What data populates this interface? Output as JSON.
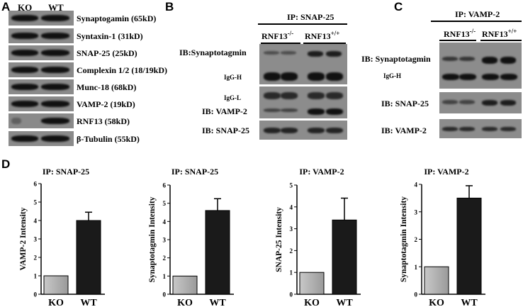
{
  "panels": {
    "A": "A",
    "B": "B",
    "C": "C",
    "D": "D"
  },
  "panelA": {
    "lanes": [
      "KO",
      "WT"
    ],
    "rows": [
      "Synaptogamin (65kD)",
      "Syntaxin-1 (31kD)",
      "SNAP-25 (25kD)",
      "Complexin 1/2 (18/19kD)",
      "Munc-18 (68kD)",
      "VAMP-2 (19kD)",
      "RNF13 (58kD)",
      "β-Tubulin (55kD)"
    ]
  },
  "panelB": {
    "ip": "IP: SNAP-25",
    "ko": "RNF13",
    "ko_sup": "-/-",
    "wt": "RNF13",
    "wt_sup": "+/+",
    "labels": {
      "ib_syt": "IB:Synaptotagmin",
      "igg_h": "IgG-H",
      "igg_l": "IgG-L",
      "ib_vamp": "IB: VAMP-2",
      "ib_snap": "IB: SNAP-25"
    }
  },
  "panelC": {
    "ip": "IP: VAMP-2",
    "ko": "RNF13",
    "ko_sup": "-/-",
    "wt": "RNF13",
    "wt_sup": "+/+",
    "labels": {
      "ib_syt": "IB: Synaptotagmin",
      "igg_h": "IgG-H",
      "ib_snap": "IB: SNAP-25",
      "ib_vamp": "IB: VAMP-2"
    }
  },
  "chart_data": [
    {
      "type": "bar",
      "title": "IP: SNAP-25",
      "ylabel": "VAMP-2 Intensity",
      "categories": [
        "KO",
        "WT"
      ],
      "values": [
        1.0,
        4.0
      ],
      "errors": [
        0,
        0.45
      ],
      "ylim": [
        0,
        6
      ],
      "yticks": [
        0,
        1,
        2,
        3,
        4,
        5,
        6
      ]
    },
    {
      "type": "bar",
      "title": "IP: SNAP-25",
      "ylabel": "Synaptotagmin Intensity",
      "categories": [
        "KO",
        "WT"
      ],
      "values": [
        1.0,
        4.6
      ],
      "errors": [
        0,
        0.65
      ],
      "ylim": [
        0,
        6
      ],
      "yticks": [
        0,
        1,
        2,
        3,
        4,
        5,
        6
      ]
    },
    {
      "type": "bar",
      "title": "IP: VAMP-2",
      "ylabel": "SNAP-25 Intensity",
      "categories": [
        "KO",
        "WT"
      ],
      "values": [
        1.0,
        3.4
      ],
      "errors": [
        0,
        1.0
      ],
      "ylim": [
        0,
        5
      ],
      "yticks": [
        0,
        1,
        2,
        3,
        4,
        5
      ]
    },
    {
      "type": "bar",
      "title": "IP: VAMP-2",
      "ylabel": "Synaptotagmin Intensity",
      "categories": [
        "KO",
        "WT"
      ],
      "values": [
        1.0,
        3.5
      ],
      "errors": [
        0,
        0.45
      ],
      "ylim": [
        0,
        4
      ],
      "yticks": [
        0,
        1,
        2,
        3,
        4
      ]
    }
  ],
  "colors": {
    "ko_bar": "#9a9a9a",
    "wt_bar": "#1a1a1a",
    "blot_bg": "#6a6a6a"
  }
}
